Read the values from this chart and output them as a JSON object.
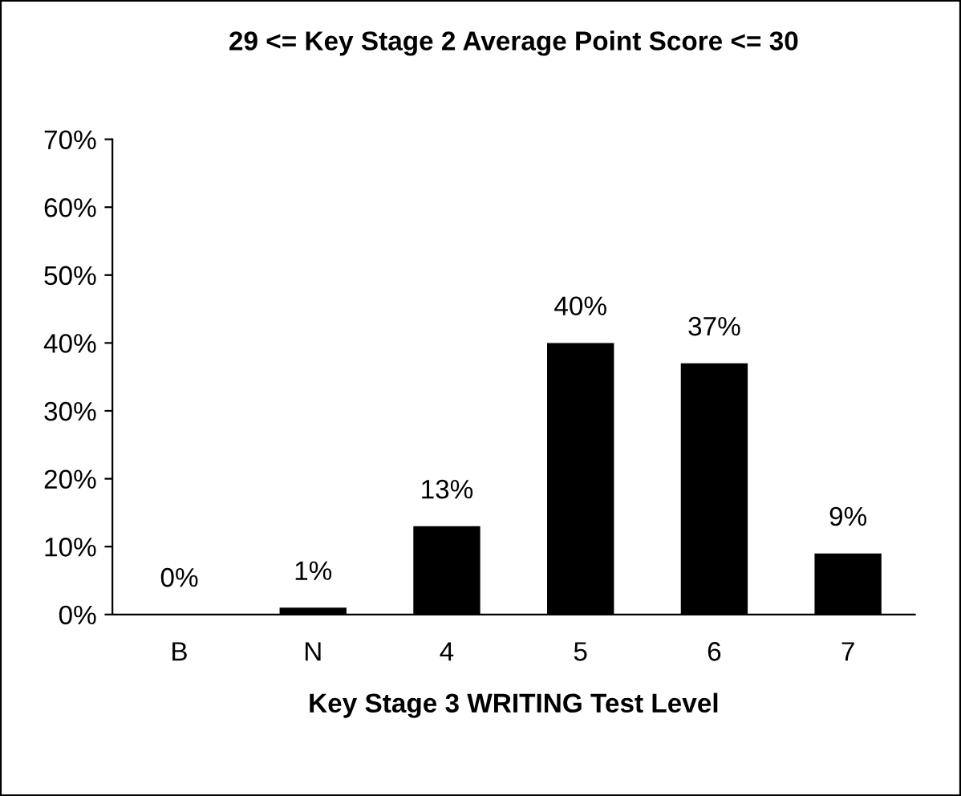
{
  "chart_data": {
    "type": "bar",
    "title": "29 <= Key Stage 2 Average Point Score <= 30",
    "xlabel": "Key Stage 3 WRITING Test Level",
    "categories": [
      "B",
      "N",
      "4",
      "5",
      "6",
      "7"
    ],
    "values": [
      0,
      1,
      13,
      40,
      37,
      9
    ],
    "color": "#000000",
    "ylim": [
      0,
      70
    ],
    "yticks": [
      {
        "value": 0,
        "label": "0%"
      },
      {
        "value": 10,
        "label": "10%"
      },
      {
        "value": 20,
        "label": "20%"
      },
      {
        "value": 30,
        "label": "30%"
      },
      {
        "value": 40,
        "label": "40%"
      },
      {
        "value": 50,
        "label": "50%"
      },
      {
        "value": 60,
        "label": "60%"
      },
      {
        "value": 70,
        "label": "70%"
      }
    ],
    "value_labels": [
      "0%",
      "1%",
      "13%",
      "40%",
      "37%",
      "9%"
    ],
    "grid": false,
    "legend": false
  }
}
